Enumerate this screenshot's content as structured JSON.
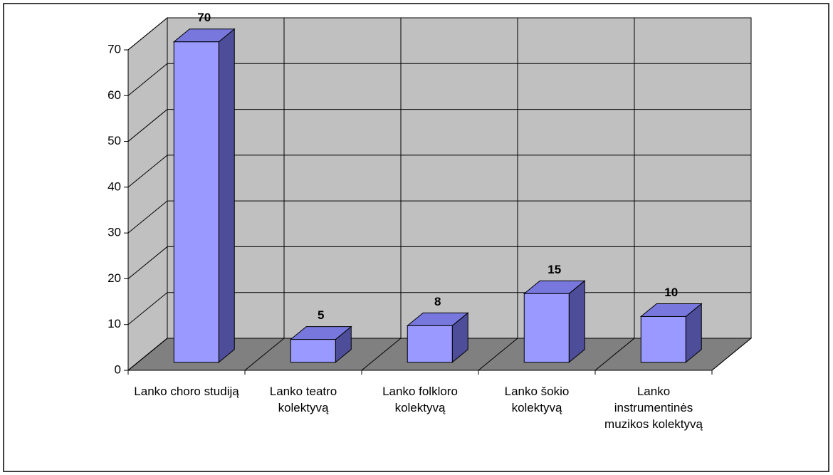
{
  "chart_data": {
    "type": "bar",
    "categories": [
      "Lanko choro studiją",
      "Lanko teatro kolektyvą",
      "Lanko folkloro kolektyvą",
      "Lanko šokio kolektyvą",
      "Lanko instrumentinės muzikos kolektyvą"
    ],
    "values": [
      70,
      5,
      8,
      15,
      10
    ],
    "color": "#9999ff",
    "ylim": [
      0,
      70
    ],
    "yticks": [
      0,
      10,
      20,
      30,
      40,
      50,
      60,
      70
    ],
    "grid": true
  }
}
